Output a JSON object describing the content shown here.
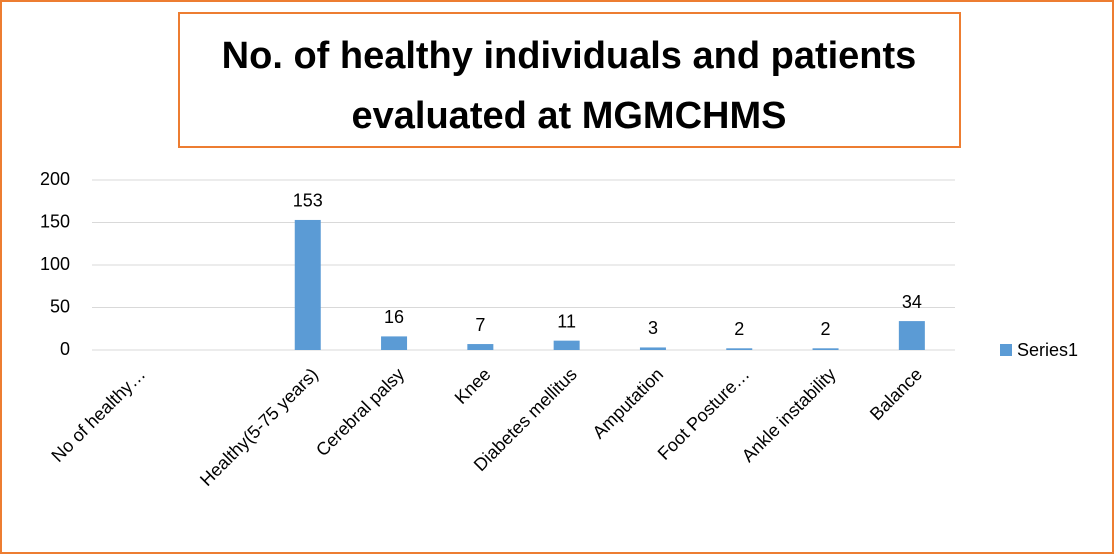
{
  "chart_data": {
    "type": "bar",
    "title": "No. of healthy individuals and patients evaluated at MGMCHMS",
    "categories": [
      "No of healthy…",
      null,
      "Healthy(5-75 years)",
      "Cerebral palsy",
      "Knee",
      "Diabetes mellitus",
      "Amputation",
      "Foot Posture…",
      "Ankle instability",
      "Balance"
    ],
    "series": [
      {
        "name": "Series1",
        "color": "#5b9bd5",
        "values": [
          null,
          null,
          153,
          16,
          7,
          11,
          3,
          2,
          2,
          34
        ]
      }
    ],
    "ylim": [
      0,
      200
    ],
    "yticks": [
      0,
      50,
      100,
      150,
      200
    ],
    "grid": true,
    "legend": "right"
  }
}
